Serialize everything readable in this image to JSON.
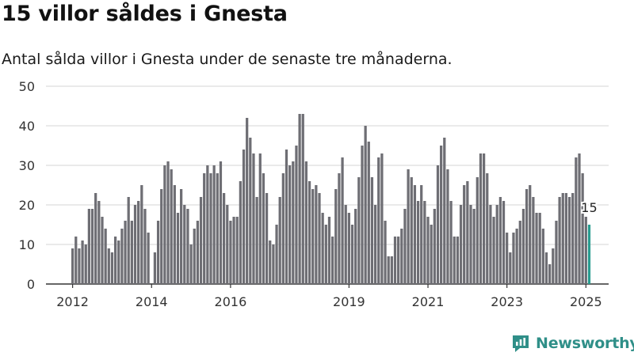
{
  "header": {
    "title": "15 villor såldes i Gnesta",
    "subtitle": "Antal sålda villor i Gnesta under de senaste tre månaderna."
  },
  "brand": {
    "name": "Newsworthy",
    "color": "#2f8f88",
    "icon": "newsworthy-logo-icon"
  },
  "chart_data": {
    "type": "bar",
    "title": "15 villor såldes i Gnesta",
    "subtitle": "Antal sålda villor i Gnesta under de senaste tre månaderna.",
    "xlabel": "",
    "ylabel": "",
    "ylim": [
      0,
      50
    ],
    "y_ticks": [
      0,
      10,
      20,
      30,
      40,
      50
    ],
    "x_ticks": [
      "2012",
      "2014",
      "2016",
      "2019",
      "2021",
      "2023",
      "2025"
    ],
    "grid": true,
    "bar_color": "#6e6e74",
    "highlight_color": "#2a9d90",
    "annotation": {
      "text": "15",
      "value": 15,
      "target": "last"
    },
    "values": [
      9,
      12,
      9,
      11,
      10,
      19,
      19,
      23,
      21,
      17,
      14,
      9,
      8,
      12,
      11,
      14,
      16,
      22,
      16,
      20,
      21,
      25,
      19,
      13,
      0,
      8,
      16,
      24,
      30,
      31,
      29,
      25,
      18,
      24,
      20,
      19,
      10,
      14,
      16,
      22,
      28,
      30,
      28,
      30,
      28,
      31,
      23,
      20,
      16,
      17,
      17,
      26,
      34,
      42,
      37,
      33,
      22,
      33,
      28,
      23,
      11,
      10,
      15,
      22,
      28,
      34,
      30,
      31,
      35,
      43,
      43,
      31,
      26,
      24,
      25,
      23,
      18,
      15,
      17,
      12,
      24,
      28,
      32,
      20,
      18,
      15,
      19,
      27,
      35,
      40,
      36,
      27,
      20,
      32,
      33,
      16,
      7,
      7,
      12,
      12,
      14,
      19,
      29,
      27,
      25,
      21,
      25,
      21,
      17,
      15,
      19,
      30,
      35,
      37,
      29,
      21,
      12,
      12,
      20,
      25,
      26,
      20,
      19,
      27,
      33,
      33,
      28,
      20,
      17,
      20,
      22,
      21,
      13,
      8,
      13,
      14,
      16,
      19,
      24,
      25,
      22,
      18,
      18,
      14,
      8,
      5,
      9,
      16,
      22,
      23,
      23,
      22,
      23,
      32,
      33,
      28,
      17,
      15
    ]
  }
}
